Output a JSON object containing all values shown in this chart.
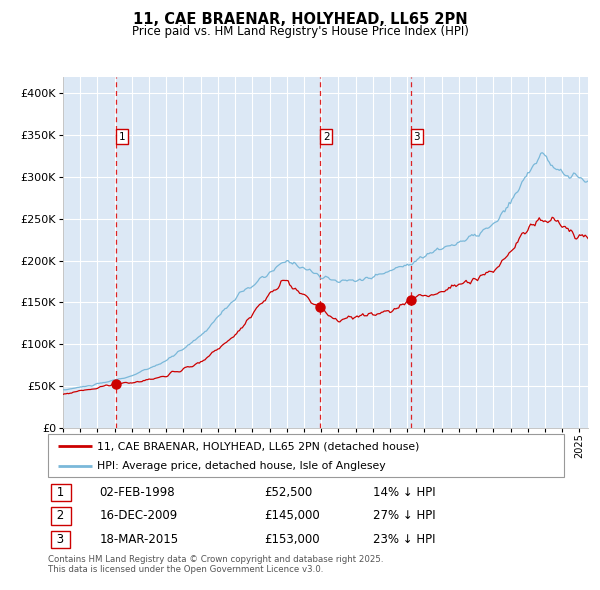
{
  "title": "11, CAE BRAENAR, HOLYHEAD, LL65 2PN",
  "subtitle": "Price paid vs. HM Land Registry's House Price Index (HPI)",
  "legend_entry1": "11, CAE BRAENAR, HOLYHEAD, LL65 2PN (detached house)",
  "legend_entry2": "HPI: Average price, detached house, Isle of Anglesey",
  "footer": "Contains HM Land Registry data © Crown copyright and database right 2025.\nThis data is licensed under the Open Government Licence v3.0.",
  "transactions": [
    {
      "num": 1,
      "date": "02-FEB-1998",
      "price": 52500,
      "pct": "14%",
      "dir": "↓"
    },
    {
      "num": 2,
      "date": "16-DEC-2009",
      "price": 145000,
      "pct": "27%",
      "dir": "↓"
    },
    {
      "num": 3,
      "date": "18-MAR-2015",
      "price": 153000,
      "pct": "23%",
      "dir": "↓"
    }
  ],
  "t1_year": 1998.083,
  "t2_year": 2009.958,
  "t3_year": 2015.208,
  "hpi_color": "#7ab8d9",
  "price_color": "#cc0000",
  "plot_bg": "#dce8f5",
  "grid_color": "#ffffff",
  "fig_bg": "#ffffff",
  "ylim": [
    0,
    420000
  ],
  "xlim_start": 1995.0,
  "xlim_end": 2025.5,
  "hpi_seed": 10,
  "price_seed": 20
}
